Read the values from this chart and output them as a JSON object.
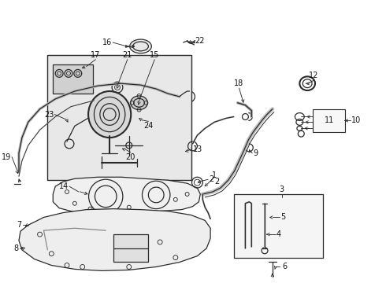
{
  "bg_color": "#ffffff",
  "line_color": "#2a2a2a",
  "label_color": "#111111",
  "gray_fill": "#e8e8e8",
  "gray_line": "#666666",
  "lw_thick": 2.5,
  "lw_med": 1.5,
  "lw_thin": 0.9,
  "fs_label": 7.0,
  "fig_w": 4.9,
  "fig_h": 3.6,
  "dpi": 100
}
